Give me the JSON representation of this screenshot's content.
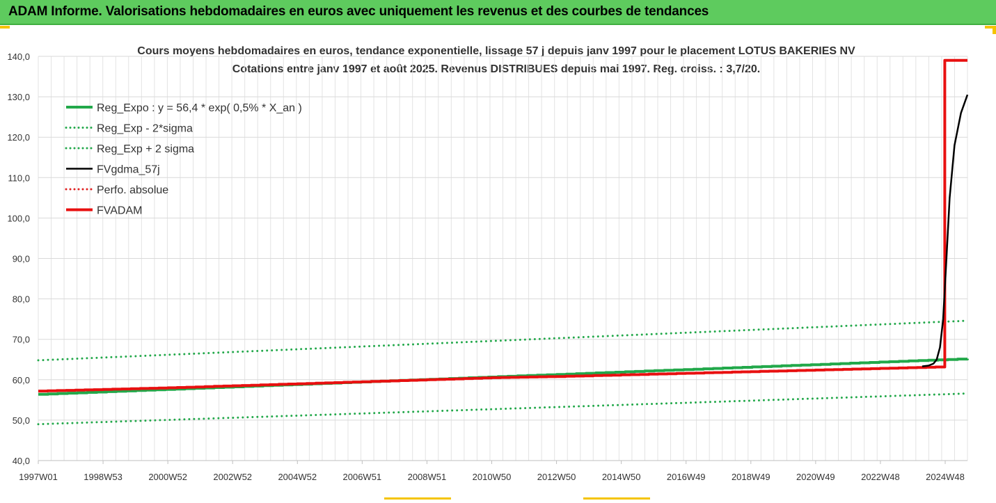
{
  "banner": {
    "title": "ADAM Informe. Valorisations hebdomadaires en euros avec uniquement les revenus et des courbes de tendances"
  },
  "chart_data": {
    "type": "line",
    "title": "Cours moyens hebdomadaires en euros, tendance exponentielle, lissage 57 j depuis janv 1997  pour le placement LOTUS BAKERIES NV",
    "subtitle": "Cotations entre janv 1997 et août 2025. Revenus DISTRIBUES depuis mai 1997. Reg. croiss. : 3,7/20.",
    "ylim": [
      40,
      140
    ],
    "y_ticks": [
      "40,0",
      "50,0",
      "60,0",
      "70,0",
      "80,0",
      "90,0",
      "100,0",
      "110,0",
      "120,0",
      "130,0",
      "140,0"
    ],
    "x_ticks": [
      "1997W01",
      "1998W53",
      "2000W52",
      "2002W52",
      "2004W52",
      "2006W51",
      "2008W51",
      "2010W50",
      "2012W50",
      "2014W50",
      "2016W49",
      "2018W49",
      "2020W49",
      "2022W48",
      "2024W48"
    ],
    "grid": true,
    "legend_position": "top-left",
    "series": [
      {
        "name": "Reg_Expo : y = 56,4 * exp( 0,5% *  X_an )",
        "color": "#22a84a",
        "style": "solid",
        "x": [
          0,
          28.7
        ],
        "values": [
          56.4,
          65.2
        ]
      },
      {
        "name": "Reg_Exp - 2*sigma",
        "color": "#22a84a",
        "style": "dotted",
        "x": [
          0,
          28.7
        ],
        "values": [
          49.0,
          56.6
        ]
      },
      {
        "name": "Reg_Exp + 2 sigma",
        "color": "#22a84a",
        "style": "dotted",
        "x": [
          0,
          28.7
        ],
        "values": [
          64.8,
          74.6
        ]
      },
      {
        "name": "FVgdma_57j",
        "color": "#000000",
        "style": "solid",
        "x": [
          27.3,
          27.5,
          27.65,
          27.75,
          27.85,
          27.95,
          28.05,
          28.15,
          28.3,
          28.5,
          28.7
        ],
        "values": [
          63.3,
          63.5,
          64.0,
          65.0,
          68.0,
          75.0,
          90.0,
          105.0,
          118.0,
          126.0,
          130.5
        ]
      },
      {
        "name": "Perfo. absolue",
        "color": "#e02020",
        "style": "dotted",
        "x": [],
        "values": []
      },
      {
        "name": "FVADAM",
        "color": "#e81010",
        "style": "solid",
        "x": [
          0,
          2,
          4,
          6,
          8,
          10,
          12,
          14,
          16,
          18,
          20,
          22,
          24,
          26,
          28.0,
          28.0,
          28.7
        ],
        "values": [
          57.2,
          57.6,
          58.0,
          58.5,
          59.0,
          59.5,
          60.0,
          60.5,
          60.8,
          61.2,
          61.6,
          62.0,
          62.4,
          62.8,
          63.2,
          139.0,
          139.0
        ]
      }
    ]
  }
}
